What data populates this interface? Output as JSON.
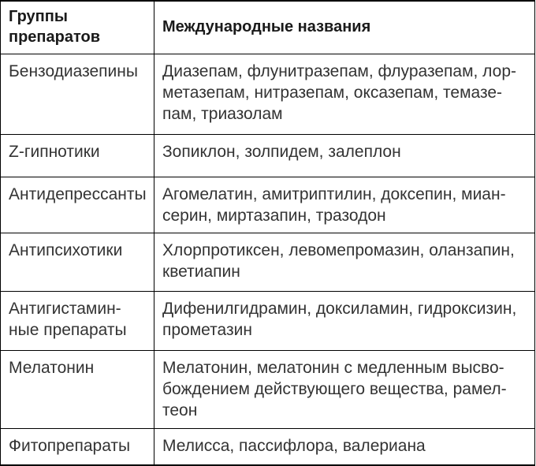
{
  "colors": {
    "background": "#ffffff",
    "border": "#000000",
    "header_text": "#1a1a1a",
    "body_text": "#333333"
  },
  "table": {
    "header": {
      "groups": {
        "lines": [
          "Группы",
          "препаратов"
        ]
      },
      "names": {
        "lines": [
          "Международные названия"
        ]
      }
    },
    "rows": [
      {
        "group": {
          "lines": [
            "Бензодиазепины"
          ]
        },
        "names": {
          "lines": [
            "Диазепам, флунитразепам, флуразепам, лор-",
            "метазепам, нитразепам, оксазепам, темазе-",
            "пам, триазолам"
          ]
        }
      },
      {
        "group": {
          "lines": [
            "Z-гипнотики"
          ]
        },
        "names": {
          "lines": [
            "Зопиклон, золпидем, залеплон"
          ]
        }
      },
      {
        "group": {
          "lines": [
            "Антидепрессанты"
          ]
        },
        "names": {
          "lines": [
            "Агомелатин, амитриптилин, доксепин, миан-",
            "серин, миртазапин, тразодон"
          ]
        }
      },
      {
        "group": {
          "lines": [
            "Антипсихотики"
          ]
        },
        "names": {
          "lines": [
            "Хлорпротиксен, левомепромазин, оланзапин,",
            "кветиапин"
          ]
        }
      },
      {
        "group": {
          "lines": [
            "Антигистамин-",
            "ные препараты"
          ]
        },
        "names": {
          "lines": [
            "Дифенилгидрамин, доксиламин, гидроксизин,",
            "прометазин"
          ]
        }
      },
      {
        "group": {
          "lines": [
            "Мелатонин"
          ]
        },
        "names": {
          "lines": [
            "Мелатонин, мелатонин с медленным высво-",
            "бождением действующего вещества, рамел-",
            "теон"
          ]
        }
      },
      {
        "group": {
          "lines": [
            "Фитопрепараты"
          ]
        },
        "names": {
          "lines": [
            "Мелисса, пассифлора, валериана"
          ]
        }
      }
    ]
  }
}
